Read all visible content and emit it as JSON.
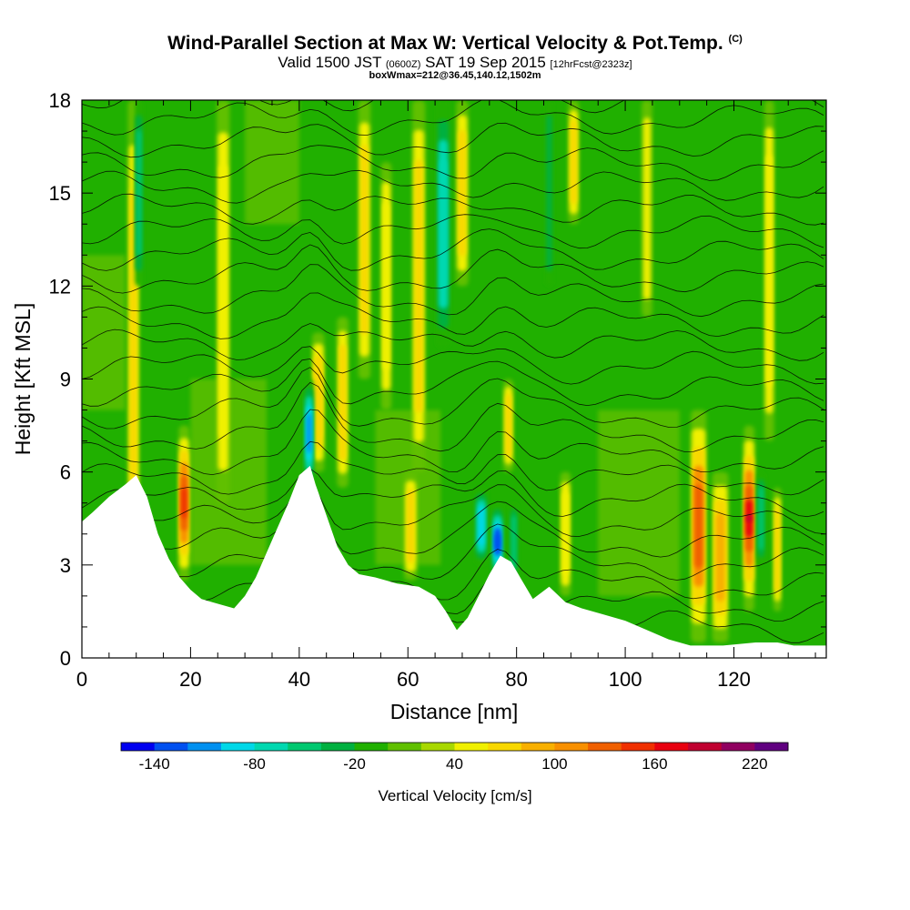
{
  "header": {
    "title": "Wind-Parallel Section at Max W: Vertical Velocity & Pot.Temp.",
    "title_mark": "(C)",
    "valid_prefix": "Valid 1500 JST",
    "valid_utc": "(0600Z)",
    "valid_date": "SAT 19 Sep 2015",
    "valid_fcst": "[12hrFcst@2323z]",
    "box_info": "boxWmax=212@36.45,140.12,1502m"
  },
  "chart_data": {
    "type": "heatmap",
    "xlabel": "Distance [nm]",
    "ylabel": "Height [Kft MSL]",
    "xlim": [
      0,
      137
    ],
    "ylim": [
      0,
      18
    ],
    "x_ticks": [
      "0",
      "20",
      "40",
      "60",
      "80",
      "100",
      "120"
    ],
    "y_ticks": [
      "0",
      "3",
      "6",
      "9",
      "12",
      "15",
      "18"
    ],
    "colorbar": {
      "label": "Vertical Velocity [cm/s]",
      "min": -160,
      "max": 240,
      "step": 20,
      "tick_labels": [
        "-140",
        "-80",
        "-20",
        "40",
        "100",
        "160",
        "220"
      ],
      "colors": [
        "#0000f0",
        "#0050f0",
        "#0090f0",
        "#00d8e8",
        "#00d8b0",
        "#00c870",
        "#00b040",
        "#20b000",
        "#60c000",
        "#a8d800",
        "#f0f000",
        "#f8d800",
        "#f8b000",
        "#f89000",
        "#f06000",
        "#f03000",
        "#e80010",
        "#c00030",
        "#900060",
        "#600080"
      ]
    },
    "terrain_top_kft": [
      [
        0,
        4.4
      ],
      [
        2,
        4.7
      ],
      [
        5,
        5.2
      ],
      [
        8,
        5.6
      ],
      [
        10,
        5.9
      ],
      [
        12,
        5.2
      ],
      [
        14,
        4.0
      ],
      [
        16,
        3.2
      ],
      [
        18,
        2.6
      ],
      [
        20,
        2.2
      ],
      [
        22,
        1.9
      ],
      [
        24,
        1.8
      ],
      [
        26,
        1.7
      ],
      [
        28,
        1.6
      ],
      [
        30,
        2.0
      ],
      [
        32,
        2.6
      ],
      [
        34,
        3.4
      ],
      [
        36,
        4.2
      ],
      [
        38,
        5.0
      ],
      [
        40,
        5.9
      ],
      [
        42,
        6.2
      ],
      [
        43,
        5.6
      ],
      [
        45,
        4.6
      ],
      [
        47,
        3.6
      ],
      [
        49,
        3.0
      ],
      [
        51,
        2.7
      ],
      [
        54,
        2.6
      ],
      [
        58,
        2.4
      ],
      [
        62,
        2.3
      ],
      [
        65,
        2.0
      ],
      [
        67,
        1.5
      ],
      [
        69,
        0.9
      ],
      [
        71,
        1.3
      ],
      [
        73,
        2.0
      ],
      [
        75,
        2.7
      ],
      [
        77,
        3.3
      ],
      [
        79,
        3.1
      ],
      [
        81,
        2.5
      ],
      [
        83,
        1.9
      ],
      [
        86,
        2.3
      ],
      [
        89,
        1.8
      ],
      [
        92,
        1.6
      ],
      [
        96,
        1.4
      ],
      [
        100,
        1.2
      ],
      [
        104,
        0.9
      ],
      [
        108,
        0.6
      ],
      [
        112,
        0.4
      ],
      [
        118,
        0.4
      ],
      [
        124,
        0.5
      ],
      [
        128,
        0.5
      ],
      [
        131,
        0.4
      ],
      [
        137,
        0.4
      ]
    ],
    "updrafts": [
      {
        "x": 9.5,
        "y": [
          0,
          18
        ],
        "w": 1.4,
        "v": 70
      },
      {
        "x": 18.8,
        "y": [
          2.5,
          7.5
        ],
        "w": 1.3,
        "v": 140
      },
      {
        "x": 26,
        "y": [
          5,
          18
        ],
        "w": 1.6,
        "v": 45
      },
      {
        "x": 43.5,
        "y": [
          6,
          10.5
        ],
        "w": 1.5,
        "v": 75
      },
      {
        "x": 48,
        "y": [
          5.5,
          11
        ],
        "w": 1.4,
        "v": 65
      },
      {
        "x": 52,
        "y": [
          9,
          18
        ],
        "w": 1.5,
        "v": 70
      },
      {
        "x": 56,
        "y": [
          8,
          16
        ],
        "w": 1.3,
        "v": 45
      },
      {
        "x": 62,
        "y": [
          6,
          18
        ],
        "w": 1.6,
        "v": 70
      },
      {
        "x": 70,
        "y": [
          12,
          18
        ],
        "w": 1.5,
        "v": 65
      },
      {
        "x": 60.5,
        "y": [
          2.5,
          6
        ],
        "w": 1.6,
        "v": 60
      },
      {
        "x": 78.5,
        "y": [
          6,
          9
        ],
        "w": 1.2,
        "v": 70
      },
      {
        "x": 89,
        "y": [
          2,
          6
        ],
        "w": 1.3,
        "v": 45
      },
      {
        "x": 90.5,
        "y": [
          14,
          18
        ],
        "w": 1.3,
        "v": 65
      },
      {
        "x": 104,
        "y": [
          11,
          18
        ],
        "w": 1.3,
        "v": 40
      },
      {
        "x": 113.5,
        "y": [
          0.5,
          8
        ],
        "w": 1.9,
        "v": 130
      },
      {
        "x": 117.5,
        "y": [
          0.5,
          6
        ],
        "w": 2.0,
        "v": 95
      },
      {
        "x": 122.8,
        "y": [
          1.5,
          7.5
        ],
        "w": 1.3,
        "v": 212
      },
      {
        "x": 126.5,
        "y": [
          7,
          18
        ],
        "w": 1.2,
        "v": 50
      },
      {
        "x": 128,
        "y": [
          1.5,
          5.5
        ],
        "w": 1.0,
        "v": 70
      }
    ],
    "downdrafts": [
      {
        "x": 10.5,
        "y": [
          12,
          18
        ],
        "w": 1.0,
        "v": -60
      },
      {
        "x": 41.8,
        "y": [
          5.5,
          9
        ],
        "w": 1.1,
        "v": -110
      },
      {
        "x": 66.5,
        "y": [
          10,
          18
        ],
        "w": 1.6,
        "v": -80
      },
      {
        "x": 73.5,
        "y": [
          3,
          5.5
        ],
        "w": 1.5,
        "v": -100
      },
      {
        "x": 76.5,
        "y": [
          2.5,
          5
        ],
        "w": 1.3,
        "v": -140
      },
      {
        "x": 79.5,
        "y": [
          2.5,
          5
        ],
        "w": 1.0,
        "v": -60
      },
      {
        "x": 86,
        "y": [
          12,
          18
        ],
        "w": 1.0,
        "v": -40
      },
      {
        "x": 125,
        "y": [
          3,
          6
        ],
        "w": 1.0,
        "v": -60
      }
    ],
    "theta_contour_levels": 26
  }
}
